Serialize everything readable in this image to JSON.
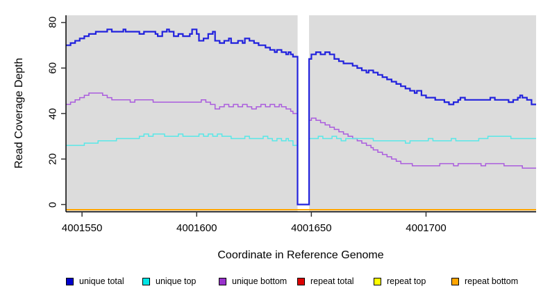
{
  "chart_data": {
    "type": "line",
    "subtype": "step",
    "title": "",
    "xlabel": "Coordinate in Reference Genome",
    "ylabel": "Read Coverage Depth",
    "xlim": [
      4001543,
      4001748
    ],
    "ylim": [
      0,
      80
    ],
    "x_ticks": [
      4001550,
      4001600,
      4001650,
      4001700
    ],
    "y_ticks": [
      0,
      20,
      40,
      60,
      80
    ],
    "grid": false,
    "plot_bg_color": "#DCDCDC",
    "axis_color": "#000000",
    "legend_position": "bottom",
    "gap_region": {
      "x_start": 4001644,
      "x_end": 4001649,
      "color": "#FFFFFF"
    },
    "series": [
      {
        "name": "unique total",
        "line_color": "#2222DD",
        "legend_color": "#0000CD",
        "line_width": 2.2,
        "render": "steps",
        "points": [
          [
            4001543,
            70
          ],
          [
            4001545,
            71
          ],
          [
            4001547,
            72
          ],
          [
            4001549,
            73
          ],
          [
            4001551,
            74
          ],
          [
            4001553,
            75
          ],
          [
            4001556,
            76
          ],
          [
            4001560,
            76
          ],
          [
            4001561,
            77
          ],
          [
            4001563,
            76
          ],
          [
            4001566,
            76
          ],
          [
            4001568,
            77
          ],
          [
            4001569,
            76
          ],
          [
            4001573,
            76
          ],
          [
            4001575,
            75
          ],
          [
            4001577,
            76
          ],
          [
            4001580,
            76
          ],
          [
            4001582,
            75
          ],
          [
            4001583,
            74
          ],
          [
            4001585,
            76
          ],
          [
            4001587,
            77
          ],
          [
            4001588,
            76
          ],
          [
            4001590,
            74
          ],
          [
            4001592,
            75
          ],
          [
            4001594,
            74
          ],
          [
            4001597,
            75
          ],
          [
            4001598,
            77
          ],
          [
            4001600,
            75
          ],
          [
            4001601,
            72
          ],
          [
            4001603,
            73
          ],
          [
            4001605,
            75
          ],
          [
            4001607,
            76
          ],
          [
            4001608,
            72
          ],
          [
            4001610,
            71
          ],
          [
            4001612,
            72
          ],
          [
            4001614,
            73
          ],
          [
            4001615,
            71
          ],
          [
            4001618,
            72
          ],
          [
            4001620,
            71
          ],
          [
            4001621,
            73
          ],
          [
            4001623,
            72
          ],
          [
            4001625,
            71
          ],
          [
            4001627,
            70
          ],
          [
            4001630,
            69
          ],
          [
            4001632,
            68
          ],
          [
            4001634,
            67
          ],
          [
            4001635,
            68
          ],
          [
            4001637,
            67
          ],
          [
            4001639,
            66
          ],
          [
            4001640,
            67
          ],
          [
            4001641,
            66
          ],
          [
            4001642,
            65
          ],
          [
            4001644,
            0
          ],
          [
            4001649,
            64
          ],
          [
            4001650,
            66
          ],
          [
            4001652,
            67
          ],
          [
            4001654,
            66
          ],
          [
            4001656,
            67
          ],
          [
            4001658,
            66
          ],
          [
            4001660,
            64
          ],
          [
            4001662,
            63
          ],
          [
            4001664,
            62
          ],
          [
            4001666,
            62
          ],
          [
            4001668,
            61
          ],
          [
            4001670,
            60
          ],
          [
            4001672,
            59
          ],
          [
            4001674,
            58
          ],
          [
            4001675,
            59
          ],
          [
            4001677,
            58
          ],
          [
            4001679,
            57
          ],
          [
            4001681,
            56
          ],
          [
            4001683,
            55
          ],
          [
            4001685,
            54
          ],
          [
            4001687,
            53
          ],
          [
            4001689,
            52
          ],
          [
            4001691,
            51
          ],
          [
            4001693,
            50
          ],
          [
            4001695,
            49
          ],
          [
            4001696,
            50
          ],
          [
            4001698,
            48
          ],
          [
            4001700,
            47
          ],
          [
            4001702,
            47
          ],
          [
            4001704,
            46
          ],
          [
            4001706,
            46
          ],
          [
            4001708,
            45
          ],
          [
            4001710,
            44
          ],
          [
            4001712,
            45
          ],
          [
            4001714,
            46
          ],
          [
            4001715,
            47
          ],
          [
            4001717,
            46
          ],
          [
            4001720,
            46
          ],
          [
            4001724,
            46
          ],
          [
            4001728,
            47
          ],
          [
            4001730,
            46
          ],
          [
            4001734,
            46
          ],
          [
            4001736,
            45
          ],
          [
            4001738,
            46
          ],
          [
            4001740,
            47
          ],
          [
            4001741,
            48
          ],
          [
            4001742,
            47
          ],
          [
            4001744,
            46
          ],
          [
            4001746,
            44
          ]
        ]
      },
      {
        "name": "unique top",
        "line_color": "#58E8E8",
        "legend_color": "#00E5E5",
        "line_width": 1.5,
        "render": "steps",
        "points": [
          [
            4001543,
            26
          ],
          [
            4001547,
            26
          ],
          [
            4001551,
            27
          ],
          [
            4001555,
            27
          ],
          [
            4001557,
            28
          ],
          [
            4001561,
            28
          ],
          [
            4001565,
            29
          ],
          [
            4001569,
            29
          ],
          [
            4001573,
            29
          ],
          [
            4001575,
            30
          ],
          [
            4001577,
            31
          ],
          [
            4001579,
            30
          ],
          [
            4001581,
            31
          ],
          [
            4001584,
            31
          ],
          [
            4001586,
            30
          ],
          [
            4001590,
            30
          ],
          [
            4001592,
            31
          ],
          [
            4001594,
            30
          ],
          [
            4001598,
            30
          ],
          [
            4001601,
            31
          ],
          [
            4001603,
            30
          ],
          [
            4001605,
            31
          ],
          [
            4001607,
            30
          ],
          [
            4001609,
            31
          ],
          [
            4001611,
            30
          ],
          [
            4001615,
            29
          ],
          [
            4001619,
            29
          ],
          [
            4001621,
            30
          ],
          [
            4001623,
            29
          ],
          [
            4001627,
            29
          ],
          [
            4001629,
            30
          ],
          [
            4001631,
            29
          ],
          [
            4001633,
            28
          ],
          [
            4001635,
            29
          ],
          [
            4001637,
            28
          ],
          [
            4001639,
            29
          ],
          [
            4001640,
            28
          ],
          [
            4001642,
            26
          ],
          [
            4001644,
            0
          ],
          [
            4001649,
            29
          ],
          [
            4001651,
            29
          ],
          [
            4001653,
            30
          ],
          [
            4001655,
            29
          ],
          [
            4001657,
            29
          ],
          [
            4001659,
            30
          ],
          [
            4001661,
            29
          ],
          [
            4001663,
            28
          ],
          [
            4001665,
            29
          ],
          [
            4001669,
            29
          ],
          [
            4001673,
            29
          ],
          [
            4001677,
            28
          ],
          [
            4001681,
            28
          ],
          [
            4001685,
            28
          ],
          [
            4001689,
            28
          ],
          [
            4001691,
            27
          ],
          [
            4001693,
            28
          ],
          [
            4001697,
            28
          ],
          [
            4001701,
            29
          ],
          [
            4001703,
            28
          ],
          [
            4001707,
            28
          ],
          [
            4001711,
            29
          ],
          [
            4001713,
            28
          ],
          [
            4001717,
            28
          ],
          [
            4001721,
            28
          ],
          [
            4001723,
            29
          ],
          [
            4001727,
            30
          ],
          [
            4001731,
            30
          ],
          [
            4001735,
            30
          ],
          [
            4001737,
            29
          ],
          [
            4001741,
            29
          ],
          [
            4001745,
            29
          ]
        ]
      },
      {
        "name": "unique bottom",
        "line_color": "#AA5CDD",
        "legend_color": "#9932CC",
        "line_width": 1.5,
        "render": "steps",
        "points": [
          [
            4001543,
            44
          ],
          [
            4001545,
            45
          ],
          [
            4001547,
            46
          ],
          [
            4001549,
            47
          ],
          [
            4001551,
            48
          ],
          [
            4001553,
            49
          ],
          [
            4001557,
            49
          ],
          [
            4001559,
            48
          ],
          [
            4001561,
            47
          ],
          [
            4001563,
            46
          ],
          [
            4001567,
            46
          ],
          [
            4001571,
            45
          ],
          [
            4001573,
            46
          ],
          [
            4001577,
            46
          ],
          [
            4001581,
            45
          ],
          [
            4001585,
            45
          ],
          [
            4001589,
            45
          ],
          [
            4001593,
            45
          ],
          [
            4001597,
            45
          ],
          [
            4001600,
            45
          ],
          [
            4001602,
            46
          ],
          [
            4001604,
            45
          ],
          [
            4001606,
            44
          ],
          [
            4001608,
            42
          ],
          [
            4001610,
            43
          ],
          [
            4001612,
            44
          ],
          [
            4001614,
            43
          ],
          [
            4001616,
            44
          ],
          [
            4001618,
            43
          ],
          [
            4001620,
            44
          ],
          [
            4001622,
            43
          ],
          [
            4001624,
            42
          ],
          [
            4001626,
            43
          ],
          [
            4001628,
            44
          ],
          [
            4001630,
            43
          ],
          [
            4001632,
            44
          ],
          [
            4001634,
            43
          ],
          [
            4001636,
            44
          ],
          [
            4001637,
            43
          ],
          [
            4001639,
            42
          ],
          [
            4001641,
            41
          ],
          [
            4001642,
            40
          ],
          [
            4001644,
            0
          ],
          [
            4001649,
            37
          ],
          [
            4001650,
            38
          ],
          [
            4001652,
            37
          ],
          [
            4001654,
            36
          ],
          [
            4001656,
            35
          ],
          [
            4001658,
            34
          ],
          [
            4001660,
            33
          ],
          [
            4001662,
            32
          ],
          [
            4001664,
            31
          ],
          [
            4001666,
            30
          ],
          [
            4001668,
            29
          ],
          [
            4001670,
            28
          ],
          [
            4001672,
            27
          ],
          [
            4001674,
            26
          ],
          [
            4001676,
            25
          ],
          [
            4001677,
            24
          ],
          [
            4001679,
            23
          ],
          [
            4001681,
            22
          ],
          [
            4001683,
            21
          ],
          [
            4001685,
            20
          ],
          [
            4001687,
            19
          ],
          [
            4001689,
            18
          ],
          [
            4001692,
            18
          ],
          [
            4001694,
            17
          ],
          [
            4001698,
            17
          ],
          [
            4001702,
            17
          ],
          [
            4001706,
            18
          ],
          [
            4001710,
            18
          ],
          [
            4001712,
            17
          ],
          [
            4001714,
            18
          ],
          [
            4001718,
            18
          ],
          [
            4001722,
            18
          ],
          [
            4001724,
            17
          ],
          [
            4001726,
            18
          ],
          [
            4001730,
            18
          ],
          [
            4001734,
            17
          ],
          [
            4001738,
            17
          ],
          [
            4001742,
            16
          ],
          [
            4001746,
            16
          ]
        ]
      },
      {
        "name": "repeat total",
        "line_color": "#DD0000",
        "legend_color": "#DD0000",
        "line_width": 2,
        "render": "baseline",
        "points": [
          [
            4001543,
            0
          ],
          [
            4001748,
            0
          ]
        ]
      },
      {
        "name": "repeat top",
        "line_color": "#FFFF00",
        "legend_color": "#FFFF00",
        "line_width": 2,
        "render": "baseline",
        "points": [
          [
            4001543,
            0
          ],
          [
            4001748,
            0
          ]
        ]
      },
      {
        "name": "repeat bottom",
        "line_color": "#FFA500",
        "legend_color": "#FFA500",
        "line_width": 2,
        "render": "baseline",
        "points": [
          [
            4001543,
            0
          ],
          [
            4001748,
            0
          ]
        ]
      }
    ],
    "legend_order": [
      "unique total",
      "unique top",
      "unique bottom",
      "repeat total",
      "repeat top",
      "repeat bottom"
    ]
  }
}
